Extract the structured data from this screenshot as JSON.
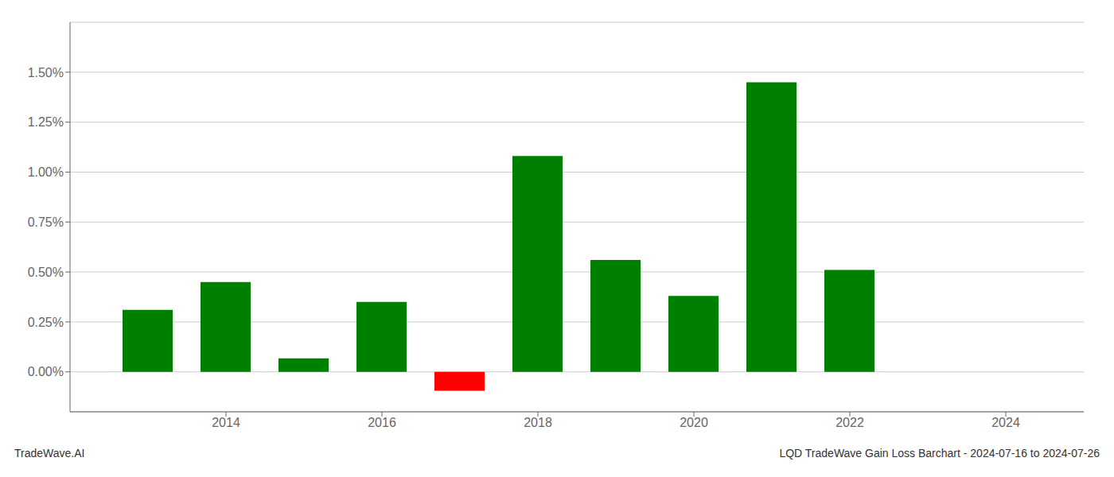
{
  "chart_data": {
    "type": "bar",
    "x": [
      2013,
      2014,
      2015,
      2016,
      2017,
      2018,
      2019,
      2020,
      2021,
      2022
    ],
    "values": [
      0.0031,
      0.0045,
      0.00068,
      0.0035,
      -0.00095,
      0.0108,
      0.0056,
      0.0038,
      0.0145,
      0.0051
    ],
    "colors": [
      "#008000",
      "#008000",
      "#008000",
      "#008000",
      "#ff0000",
      "#008000",
      "#008000",
      "#008000",
      "#008000",
      "#008000"
    ],
    "xlim": [
      2012.0,
      2025.0
    ],
    "xticks": [
      2014,
      2016,
      2018,
      2020,
      2022,
      2024
    ],
    "ylim": [
      -0.002,
      0.0175
    ],
    "yticks": [
      {
        "value": 0.0,
        "label": "0.00%"
      },
      {
        "value": 0.0025,
        "label": "0.25%"
      },
      {
        "value": 0.005,
        "label": "0.50%"
      },
      {
        "value": 0.0075,
        "label": "0.75%"
      },
      {
        "value": 0.01,
        "label": "1.00%"
      },
      {
        "value": 0.0125,
        "label": "1.25%"
      },
      {
        "value": 0.015,
        "label": "1.50%"
      }
    ],
    "grid": true,
    "annotations": [
      "TradeWave.AI",
      "LQD TradeWave Gain Loss Barchart - 2024-07-16 to 2024-07-26"
    ]
  }
}
